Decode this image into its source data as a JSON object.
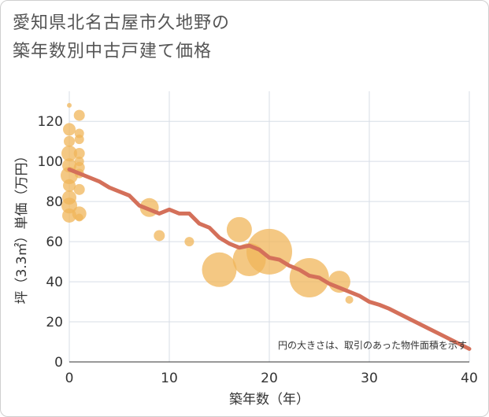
{
  "title_lines": [
    "愛知県北名古屋市久地野の",
    "築年数別中古戸建て価格"
  ],
  "chart_data": {
    "type": "scatter+line",
    "xlabel": "築年数（年）",
    "ylabel": "坪（3.3㎡）単価（万円）",
    "xlim": [
      0,
      40
    ],
    "ylim": [
      0,
      135
    ],
    "xticks": [
      0,
      10,
      20,
      30,
      40
    ],
    "yticks": [
      0,
      20,
      40,
      60,
      80,
      100,
      120
    ],
    "annotation": "円の大きさは、取引のあった物件面積を示す",
    "bubble_color": "#f0b55a",
    "line_color": "#d4705a",
    "bubbles": [
      {
        "x": 0,
        "y": 128,
        "s": 3
      },
      {
        "x": 0,
        "y": 116,
        "s": 8
      },
      {
        "x": 0,
        "y": 110,
        "s": 7
      },
      {
        "x": 0,
        "y": 104,
        "s": 10
      },
      {
        "x": 0,
        "y": 98,
        "s": 9
      },
      {
        "x": 0,
        "y": 93,
        "s": 11
      },
      {
        "x": 0,
        "y": 88,
        "s": 8
      },
      {
        "x": 0,
        "y": 82,
        "s": 9
      },
      {
        "x": 0,
        "y": 78,
        "s": 10
      },
      {
        "x": 0,
        "y": 73,
        "s": 9
      },
      {
        "x": 1,
        "y": 123,
        "s": 7
      },
      {
        "x": 1,
        "y": 114,
        "s": 6
      },
      {
        "x": 1,
        "y": 111,
        "s": 6
      },
      {
        "x": 1,
        "y": 104,
        "s": 7
      },
      {
        "x": 1,
        "y": 100,
        "s": 6
      },
      {
        "x": 1,
        "y": 97,
        "s": 7
      },
      {
        "x": 1,
        "y": 94,
        "s": 6
      },
      {
        "x": 1,
        "y": 86,
        "s": 7
      },
      {
        "x": 1,
        "y": 74,
        "s": 9
      },
      {
        "x": 1,
        "y": 72,
        "s": 5
      },
      {
        "x": 8,
        "y": 77,
        "s": 12
      },
      {
        "x": 9,
        "y": 63,
        "s": 7
      },
      {
        "x": 12,
        "y": 60,
        "s": 6
      },
      {
        "x": 15,
        "y": 46,
        "s": 22
      },
      {
        "x": 17,
        "y": 66,
        "s": 16
      },
      {
        "x": 18,
        "y": 51,
        "s": 21
      },
      {
        "x": 20,
        "y": 55,
        "s": 29
      },
      {
        "x": 24,
        "y": 42,
        "s": 25
      },
      {
        "x": 27,
        "y": 40,
        "s": 14
      },
      {
        "x": 28,
        "y": 31,
        "s": 5
      }
    ],
    "line": {
      "x": [
        0,
        1,
        2,
        3,
        4,
        5,
        6,
        7,
        8,
        9,
        10,
        11,
        12,
        13,
        14,
        15,
        16,
        17,
        18,
        19,
        20,
        21,
        22,
        23,
        24,
        25,
        26,
        27,
        28,
        29,
        30,
        31,
        32,
        33,
        34,
        35,
        36,
        37,
        38,
        39,
        40
      ],
      "y": [
        96,
        94,
        92,
        90,
        87,
        85,
        83,
        78,
        76,
        74,
        76,
        74,
        74,
        69,
        67,
        62,
        59,
        57,
        58,
        56,
        52,
        51,
        48,
        46,
        43,
        42,
        39,
        37,
        35,
        33,
        30,
        28.5,
        26.5,
        24,
        21.5,
        19,
        16.5,
        14,
        11.5,
        9,
        6.5
      ]
    }
  }
}
